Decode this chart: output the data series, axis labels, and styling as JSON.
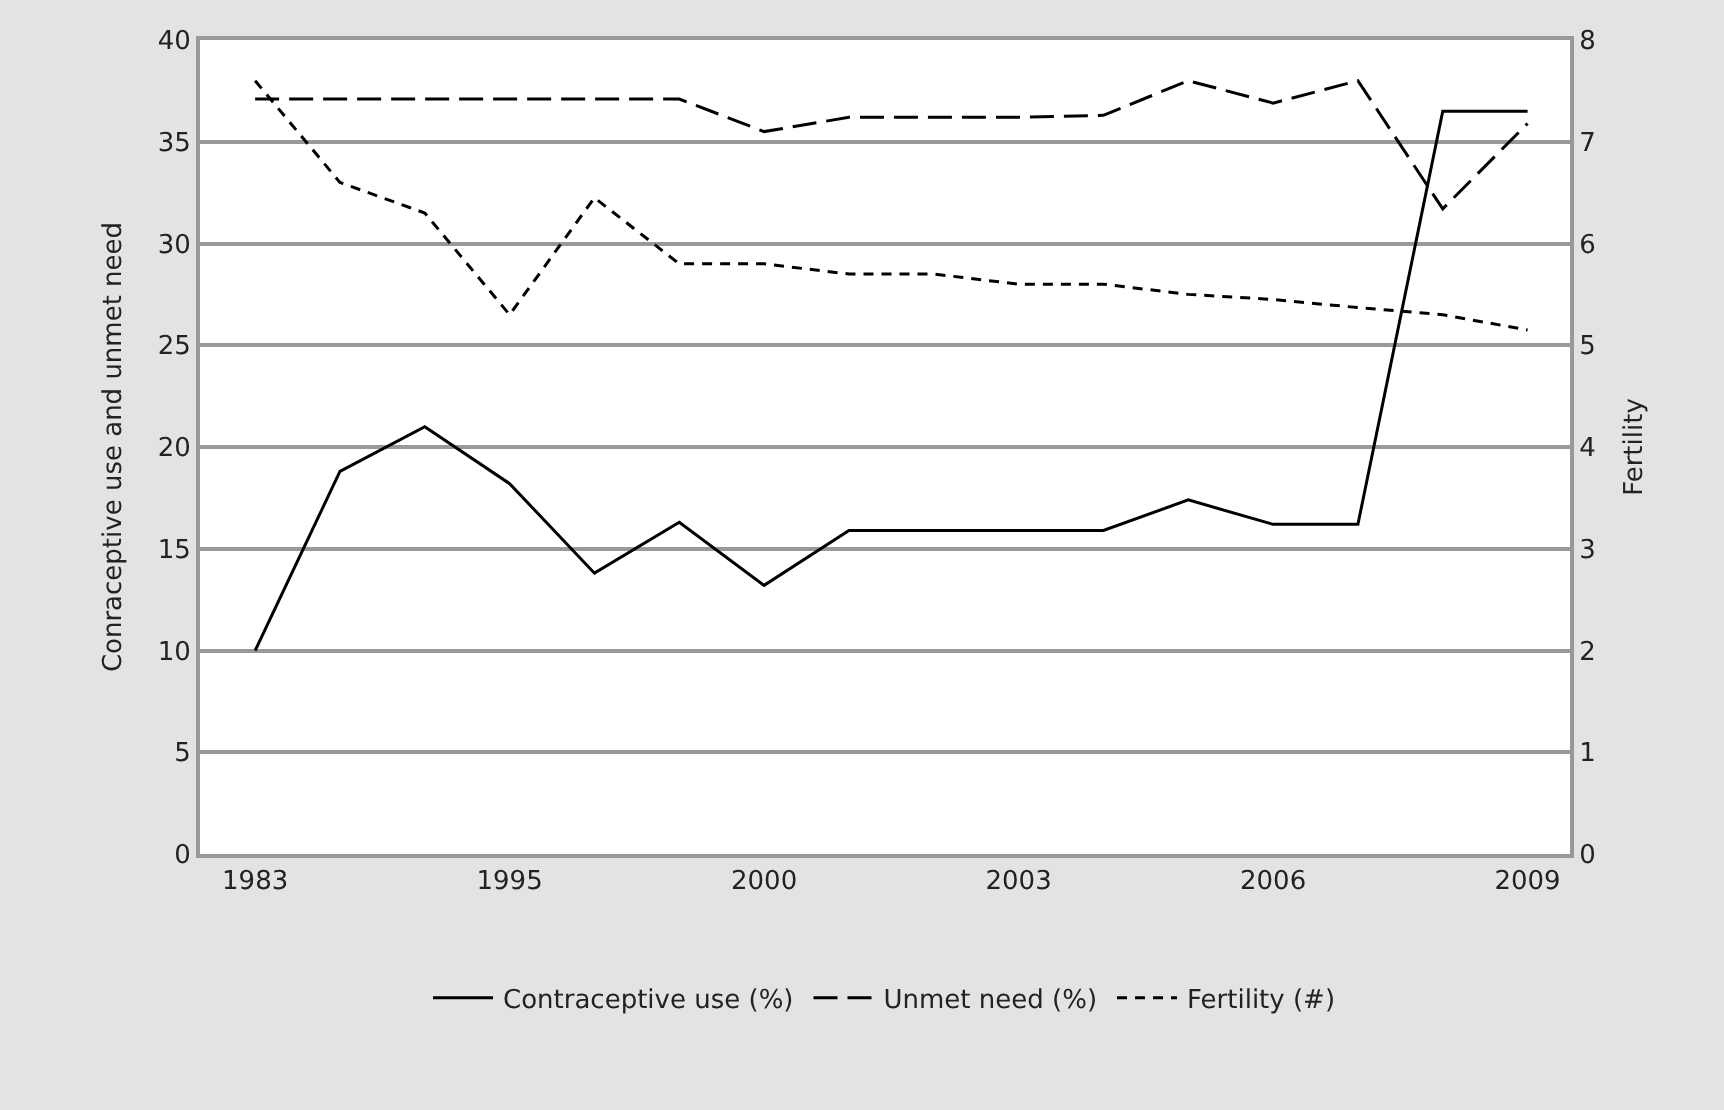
{
  "chart_data": {
    "type": "line",
    "ylabel": "Conraceptive use and unmet need",
    "y2label": "Fertility",
    "categories": [
      "1983",
      null,
      null,
      "1995",
      null,
      null,
      "2000",
      null,
      null,
      "2003",
      null,
      null,
      "2006",
      null,
      null,
      "2009"
    ],
    "series": [
      {
        "name": "Contraceptive use (%)",
        "color": "#000000",
        "line_style": "solid",
        "values": [
          10,
          18.8,
          21,
          18.2,
          13.8,
          16.3,
          13.2,
          15.9,
          15.9,
          15.9,
          15.9,
          17.4,
          16.2,
          16.2,
          36.5,
          36.5
        ]
      },
      {
        "name": "Unmet need (%)",
        "color": "#000000",
        "line_style": "dashed",
        "values": [
          37.1,
          37.1,
          37.1,
          37.1,
          37.1,
          37.1,
          35.5,
          36.2,
          36.2,
          36.2,
          36.3,
          38.0,
          36.9,
          38.0,
          31.7,
          35.9
        ]
      },
      {
        "name": "Fertility (#)",
        "color": "#000000",
        "line_style": "dotted",
        "axis": "y2",
        "values": [
          7.6,
          6.6,
          6.3,
          5.3,
          6.45,
          5.8,
          5.8,
          5.7,
          5.7,
          5.6,
          5.6,
          5.5,
          5.45,
          5.37,
          5.3,
          5.15
        ]
      }
    ],
    "ylim": [
      0,
      40
    ],
    "yticks": [
      0,
      5,
      10,
      15,
      20,
      25,
      30,
      35,
      40
    ],
    "y2lim": [
      0,
      8
    ],
    "y2ticks": [
      0,
      1,
      2,
      3,
      4,
      5,
      6,
      7,
      8
    ],
    "grid": "y",
    "legend": "bottom",
    "marker": "none"
  }
}
